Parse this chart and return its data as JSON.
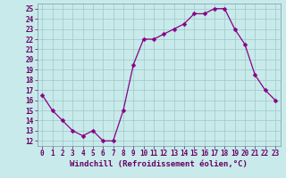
{
  "x": [
    0,
    1,
    2,
    3,
    4,
    5,
    6,
    7,
    8,
    9,
    10,
    11,
    12,
    13,
    14,
    15,
    16,
    17,
    18,
    19,
    20,
    21,
    22,
    23
  ],
  "y": [
    16.5,
    15.0,
    14.0,
    13.0,
    12.5,
    13.0,
    12.0,
    12.0,
    15.0,
    19.5,
    22.0,
    22.0,
    22.5,
    23.0,
    23.5,
    24.5,
    24.5,
    25.0,
    25.0,
    23.0,
    21.5,
    18.5,
    17.0,
    16.0
  ],
  "xlabel": "Windchill (Refroidissement éolien,°C)",
  "ylim_min": 11.5,
  "ylim_max": 25.5,
  "xlim_min": -0.5,
  "xlim_max": 23.5,
  "yticks": [
    12,
    13,
    14,
    15,
    16,
    17,
    18,
    19,
    20,
    21,
    22,
    23,
    24,
    25
  ],
  "xticks": [
    0,
    1,
    2,
    3,
    4,
    5,
    6,
    7,
    8,
    9,
    10,
    11,
    12,
    13,
    14,
    15,
    16,
    17,
    18,
    19,
    20,
    21,
    22,
    23
  ],
  "line_color": "#880088",
  "marker_color": "#880088",
  "bg_color": "#c8eaea",
  "grid_color": "#9ec8c8",
  "xlabel_fontsize": 6.5,
  "tick_fontsize": 5.5,
  "marker_size": 2.5,
  "linewidth": 0.9
}
